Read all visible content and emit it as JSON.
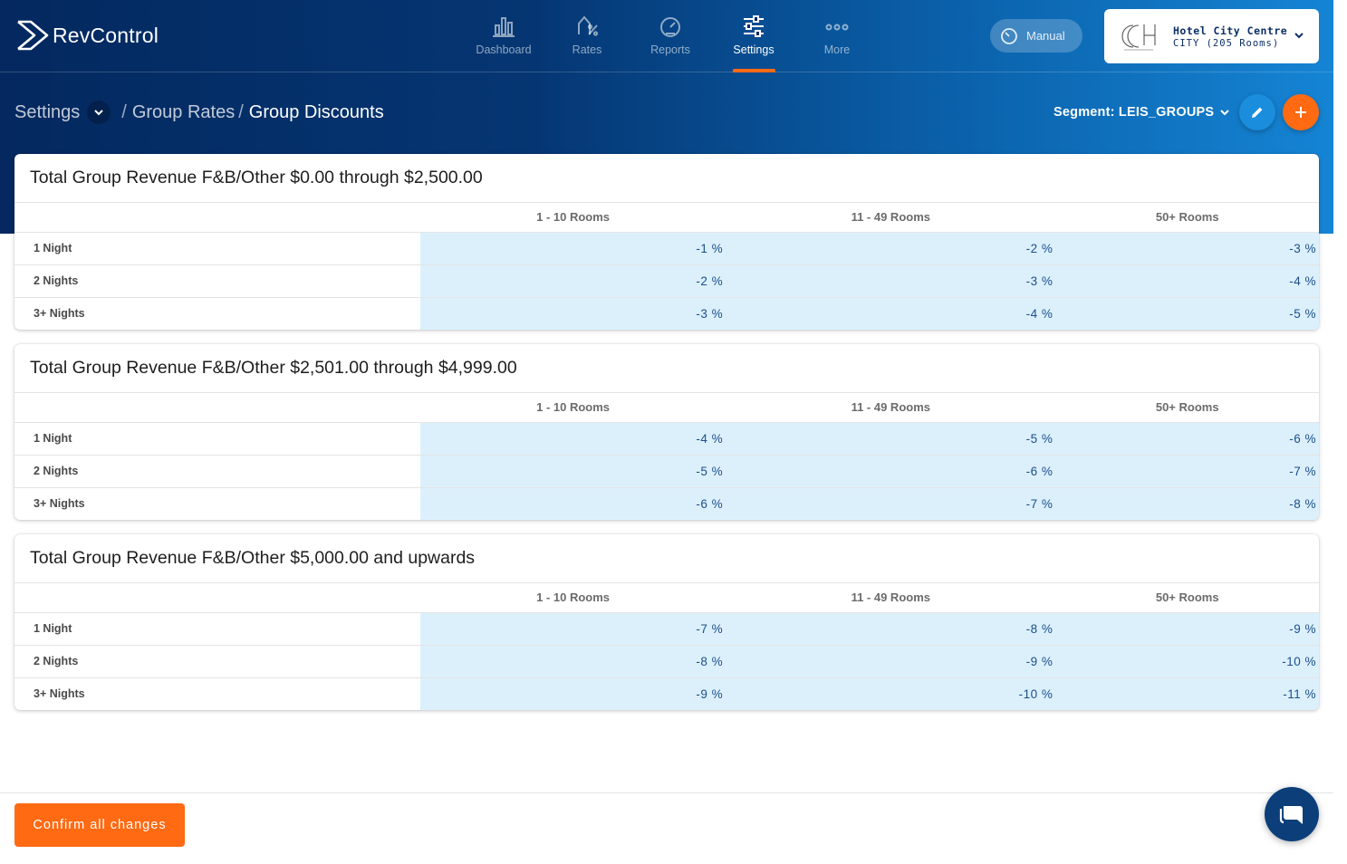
{
  "brand": {
    "name": "RevControl"
  },
  "nav": {
    "items": [
      {
        "label": "Dashboard",
        "icon": "bar-chart-icon"
      },
      {
        "label": "Rates",
        "icon": "percent-icon"
      },
      {
        "label": "Reports",
        "icon": "gauge-icon"
      },
      {
        "label": "Settings",
        "icon": "sliders-icon",
        "active": true
      },
      {
        "label": "More",
        "icon": "more-dots-icon"
      }
    ]
  },
  "mode": {
    "label": "Manual"
  },
  "hotel": {
    "name": "Hotel City Centre",
    "sub": "CITY (205 Rooms)"
  },
  "breadcrumb": {
    "root": "Settings",
    "middle": "Group Rates",
    "current": "Group Discounts",
    "sep": "/"
  },
  "segment": {
    "label": "Segment: LEIS_GROUPS"
  },
  "columns": [
    "1 - 10 Rooms",
    "11 - 49 Rooms",
    "50+ Rooms"
  ],
  "rows": [
    "1 Night",
    "2 Nights",
    "3+ Nights"
  ],
  "tables": [
    {
      "title": "Total Group Revenue F&B/Other $0.00 through $2,500.00",
      "values": [
        [
          "-1 %",
          "-2 %",
          "-3 %"
        ],
        [
          "-2 %",
          "-3 %",
          "-4 %"
        ],
        [
          "-3 %",
          "-4 %",
          "-5 %"
        ]
      ]
    },
    {
      "title": "Total Group Revenue F&B/Other $2,501.00 through $4,999.00",
      "values": [
        [
          "-4 %",
          "-5 %",
          "-6 %"
        ],
        [
          "-5 %",
          "-6 %",
          "-7 %"
        ],
        [
          "-6 %",
          "-7 %",
          "-8 %"
        ]
      ]
    },
    {
      "title": "Total Group Revenue F&B/Other $5,000.00 and upwards",
      "values": [
        [
          "-7 %",
          "-8 %",
          "-9 %"
        ],
        [
          "-8 %",
          "-9 %",
          "-10 %"
        ],
        [
          "-9 %",
          "-10 %",
          "-11 %"
        ]
      ]
    }
  ],
  "footer": {
    "confirm_label": "Confirm all changes"
  },
  "colors": {
    "accent": "#ff6a13",
    "navy": "#04285f",
    "cell": "#dcf0fc",
    "blue": "#1b8ddd"
  }
}
